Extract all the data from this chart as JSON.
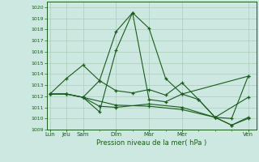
{
  "xlabel": "Pression niveau de la mer( hPa )",
  "bg_color": "#cce8e0",
  "grid_color": "#aaccbb",
  "line_color": "#1a5c1a",
  "ylim": [
    1009,
    1020.5
  ],
  "yticks": [
    1009,
    1010,
    1011,
    1012,
    1013,
    1014,
    1015,
    1016,
    1017,
    1018,
    1019,
    1020
  ],
  "day_ticks": [
    0,
    1,
    2,
    4,
    6,
    8,
    12
  ],
  "day_labels": [
    "Lun",
    "Jeu",
    "Sam",
    "Dim",
    "Mar",
    "Mer",
    "Ven"
  ],
  "line1_x": [
    0,
    1,
    2,
    3,
    4,
    5,
    6,
    7,
    8,
    12
  ],
  "line1_y": [
    1012.2,
    1013.6,
    1014.8,
    1013.4,
    1017.8,
    1019.5,
    1018.1,
    1013.6,
    1012.2,
    1013.8
  ],
  "line2_x": [
    0,
    1,
    2,
    3,
    4,
    5,
    6,
    7,
    8,
    9,
    10,
    12
  ],
  "line2_y": [
    1012.2,
    1012.2,
    1011.9,
    1010.6,
    1016.1,
    1019.5,
    1011.7,
    1011.5,
    1012.2,
    1011.7,
    1010.1,
    1011.9
  ],
  "line3_x": [
    0,
    1,
    2,
    3,
    4,
    6,
    8,
    10,
    11,
    12
  ],
  "line3_y": [
    1012.2,
    1012.2,
    1011.9,
    1011.1,
    1011.0,
    1011.3,
    1011.0,
    1010.1,
    1009.4,
    1010.0
  ],
  "line4_x": [
    0,
    1,
    2,
    4,
    6,
    8,
    10,
    11,
    12
  ],
  "line4_y": [
    1012.2,
    1012.2,
    1011.9,
    1011.2,
    1011.1,
    1010.8,
    1010.1,
    1009.4,
    1010.1
  ],
  "line5_x": [
    2,
    3,
    4,
    5,
    6,
    7,
    8,
    9,
    10,
    11,
    12
  ],
  "line5_y": [
    1011.9,
    1013.4,
    1012.5,
    1012.3,
    1012.6,
    1012.1,
    1013.2,
    1011.7,
    1010.1,
    1010.0,
    1013.8
  ]
}
